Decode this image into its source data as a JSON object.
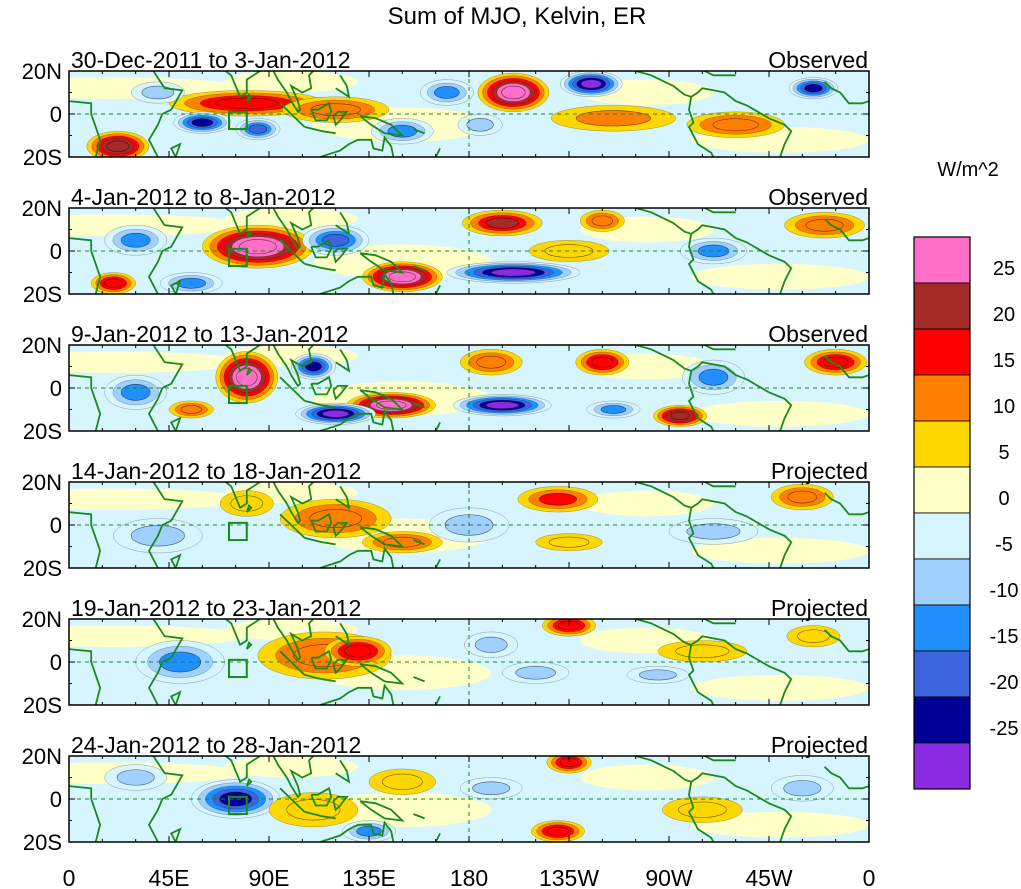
{
  "chart_data": {
    "type": "heatmap",
    "title": "Sum of MJO, Kelvin, ER",
    "colorbar": {
      "unit_label": "W/m^2",
      "tick_labels": [
        "25",
        "20",
        "15",
        "10",
        "5",
        "0",
        "-5",
        "-10",
        "-15",
        "-20",
        "-25"
      ],
      "colors": [
        "#ff6ec7",
        "#a52a2a",
        "#ff0000",
        "#ff7f00",
        "#ffd700",
        "#ffffc8",
        "#d7f5ff",
        "#a0d0ff",
        "#2090ff",
        "#3c64dc",
        "#000096",
        "#8a2be2"
      ],
      "ranges": [
        ">25",
        "20 to 25",
        "15 to 20",
        "10 to 15",
        "5 to 10",
        "0 to 5",
        "-5 to 0",
        "-10 to -5",
        "-15 to -10",
        "-20 to -15",
        "-25 to -20",
        "<-25"
      ]
    },
    "x_tick_labels": [
      "0",
      "45E",
      "90E",
      "135E",
      "180",
      "135W",
      "90W",
      "45W",
      "0"
    ],
    "x_ticks_deg": [
      0,
      45,
      90,
      135,
      180,
      225,
      270,
      315,
      360
    ],
    "y_tick_labels": [
      "20N",
      "0",
      "20S"
    ],
    "xlim": [
      0,
      360
    ],
    "ylim": [
      -20,
      20
    ],
    "panels": [
      {
        "period": "30-Dec-2011 to 3-Jan-2012",
        "status": "Observed",
        "blobs": [
          {
            "lon": 200,
            "lat": 10,
            "rlon": 16,
            "rlat": 9,
            "v": 28
          },
          {
            "lon": 235,
            "lat": 14,
            "rlon": 14,
            "rlat": 6,
            "v": -28
          },
          {
            "lon": 335,
            "lat": 12,
            "rlon": 11,
            "rlat": 5,
            "v": -25
          },
          {
            "lon": 80,
            "lat": 5,
            "rlon": 35,
            "rlat": 6,
            "v": 16
          },
          {
            "lon": 120,
            "lat": 2,
            "rlon": 24,
            "rlat": 6,
            "v": 14
          },
          {
            "lon": 22,
            "lat": -15,
            "rlon": 14,
            "rlat": 7,
            "v": 24
          },
          {
            "lon": 60,
            "lat": -4,
            "rlon": 13,
            "rlat": 5,
            "v": -23
          },
          {
            "lon": 85,
            "lat": -7,
            "rlon": 10,
            "rlat": 5,
            "v": -18
          },
          {
            "lon": 300,
            "lat": -5,
            "rlon": 22,
            "rlat": 6,
            "v": 12
          },
          {
            "lon": 245,
            "lat": -2,
            "rlon": 28,
            "rlat": 6,
            "v": 10
          },
          {
            "lon": 170,
            "lat": 10,
            "rlon": 12,
            "rlat": 6,
            "v": -14
          },
          {
            "lon": 150,
            "lat": -8,
            "rlon": 14,
            "rlat": 6,
            "v": -12
          },
          {
            "lon": 185,
            "lat": -5,
            "rlon": 10,
            "rlat": 5,
            "v": -10
          },
          {
            "lon": 40,
            "lat": 10,
            "rlon": 12,
            "rlat": 5,
            "v": -10
          }
        ]
      },
      {
        "period": "4-Jan-2012 to 8-Jan-2012",
        "status": "Observed",
        "blobs": [
          {
            "lon": 85,
            "lat": 2,
            "rlon": 25,
            "rlat": 10,
            "v": 28
          },
          {
            "lon": 150,
            "lat": -12,
            "rlon": 18,
            "rlat": 7,
            "v": 28
          },
          {
            "lon": 200,
            "lat": -10,
            "rlon": 30,
            "rlat": 5,
            "v": -28
          },
          {
            "lon": 195,
            "lat": 13,
            "rlon": 18,
            "rlat": 6,
            "v": 20
          },
          {
            "lon": 240,
            "lat": 14,
            "rlon": 10,
            "rlat": 5,
            "v": 12
          },
          {
            "lon": 340,
            "lat": 12,
            "rlon": 18,
            "rlat": 6,
            "v": 12
          },
          {
            "lon": 120,
            "lat": 5,
            "rlon": 15,
            "rlat": 7,
            "v": -16
          },
          {
            "lon": 30,
            "lat": 5,
            "rlon": 14,
            "rlat": 7,
            "v": -12
          },
          {
            "lon": 55,
            "lat": -15,
            "rlon": 14,
            "rlat": 5,
            "v": -15
          },
          {
            "lon": 290,
            "lat": 0,
            "rlon": 15,
            "rlat": 6,
            "v": -12
          },
          {
            "lon": 225,
            "lat": 0,
            "rlon": 18,
            "rlat": 5,
            "v": 6
          },
          {
            "lon": 20,
            "lat": -15,
            "rlon": 10,
            "rlat": 5,
            "v": 18
          }
        ]
      },
      {
        "period": "9-Jan-2012 to 13-Jan-2012",
        "status": "Observed",
        "blobs": [
          {
            "lon": 80,
            "lat": 5,
            "rlon": 14,
            "rlat": 12,
            "v": 28
          },
          {
            "lon": 145,
            "lat": -8,
            "rlon": 20,
            "rlat": 6,
            "v": 28
          },
          {
            "lon": 120,
            "lat": -12,
            "rlon": 18,
            "rlat": 5,
            "v": -28
          },
          {
            "lon": 195,
            "lat": -8,
            "rlon": 22,
            "rlat": 5,
            "v": -28
          },
          {
            "lon": 240,
            "lat": 12,
            "rlon": 12,
            "rlat": 6,
            "v": 16
          },
          {
            "lon": 190,
            "lat": 12,
            "rlon": 14,
            "rlat": 6,
            "v": 12
          },
          {
            "lon": 275,
            "lat": -13,
            "rlon": 12,
            "rlat": 5,
            "v": 24
          },
          {
            "lon": 345,
            "lat": 12,
            "rlon": 14,
            "rlat": 6,
            "v": 18
          },
          {
            "lon": 30,
            "lat": -2,
            "rlon": 14,
            "rlat": 8,
            "v": -12
          },
          {
            "lon": 290,
            "lat": 5,
            "rlon": 14,
            "rlat": 8,
            "v": -14
          },
          {
            "lon": 110,
            "lat": 10,
            "rlon": 10,
            "rlat": 6,
            "v": -22
          },
          {
            "lon": 245,
            "lat": -10,
            "rlon": 12,
            "rlat": 4,
            "v": -14
          },
          {
            "lon": 55,
            "lat": -10,
            "rlon": 10,
            "rlat": 4,
            "v": 12
          }
        ]
      },
      {
        "period": "14-Jan-2012 to 18-Jan-2012",
        "status": "Projected",
        "blobs": [
          {
            "lon": 120,
            "lat": 3,
            "rlon": 25,
            "rlat": 9,
            "v": 12
          },
          {
            "lon": 150,
            "lat": -8,
            "rlon": 18,
            "rlat": 5,
            "v": 14
          },
          {
            "lon": 220,
            "lat": 12,
            "rlon": 18,
            "rlat": 6,
            "v": 15
          },
          {
            "lon": 330,
            "lat": 13,
            "rlon": 14,
            "rlat": 6,
            "v": 14
          },
          {
            "lon": 80,
            "lat": 10,
            "rlon": 12,
            "rlat": 6,
            "v": 7
          },
          {
            "lon": 40,
            "lat": -5,
            "rlon": 20,
            "rlat": 8,
            "v": -10
          },
          {
            "lon": 180,
            "lat": 0,
            "rlon": 18,
            "rlat": 8,
            "v": -7
          },
          {
            "lon": 290,
            "lat": -3,
            "rlon": 20,
            "rlat": 6,
            "v": -10
          },
          {
            "lon": 225,
            "lat": -8,
            "rlon": 15,
            "rlat": 4,
            "v": 8
          }
        ]
      },
      {
        "period": "19-Jan-2012 to 23-Jan-2012",
        "status": "Projected",
        "blobs": [
          {
            "lon": 115,
            "lat": 3,
            "rlon": 30,
            "rlat": 11,
            "v": 14
          },
          {
            "lon": 130,
            "lat": 5,
            "rlon": 15,
            "rlat": 7,
            "v": 17
          },
          {
            "lon": 225,
            "lat": 17,
            "rlon": 12,
            "rlat": 5,
            "v": 18
          },
          {
            "lon": 50,
            "lat": 0,
            "rlon": 20,
            "rlat": 10,
            "v": -14
          },
          {
            "lon": 210,
            "lat": -5,
            "rlon": 15,
            "rlat": 5,
            "v": -10
          },
          {
            "lon": 265,
            "lat": -6,
            "rlon": 14,
            "rlat": 4,
            "v": -8
          },
          {
            "lon": 190,
            "lat": 8,
            "rlon": 12,
            "rlat": 6,
            "v": -8
          },
          {
            "lon": 335,
            "lat": 12,
            "rlon": 12,
            "rlat": 5,
            "v": 8
          },
          {
            "lon": 285,
            "lat": 5,
            "rlon": 20,
            "rlat": 5,
            "v": 6
          }
        ]
      },
      {
        "period": "24-Jan-2012 to 28-Jan-2012",
        "status": "Projected",
        "blobs": [
          {
            "lon": 75,
            "lat": 0,
            "rlon": 20,
            "rlat": 9,
            "v": -22
          },
          {
            "lon": 135,
            "lat": -15,
            "rlon": 12,
            "rlat": 5,
            "v": -14
          },
          {
            "lon": 220,
            "lat": -15,
            "rlon": 12,
            "rlat": 5,
            "v": 16
          },
          {
            "lon": 225,
            "lat": 17,
            "rlon": 10,
            "rlat": 5,
            "v": 16
          },
          {
            "lon": 110,
            "lat": -5,
            "rlon": 20,
            "rlat": 8,
            "v": 9
          },
          {
            "lon": 150,
            "lat": 8,
            "rlon": 15,
            "rlat": 6,
            "v": 6
          },
          {
            "lon": 190,
            "lat": 5,
            "rlon": 14,
            "rlat": 5,
            "v": -8
          },
          {
            "lon": 30,
            "lat": 10,
            "rlon": 14,
            "rlat": 6,
            "v": -8
          },
          {
            "lon": 285,
            "lat": -5,
            "rlon": 18,
            "rlat": 6,
            "v": 6
          },
          {
            "lon": 330,
            "lat": 5,
            "rlon": 14,
            "rlat": 6,
            "v": -7
          }
        ]
      }
    ],
    "region_box": {
      "lon_min": 72,
      "lon_max": 80,
      "lat_min": -7,
      "lat_max": 1
    },
    "equator_lat": 0,
    "dateline_lon": 180
  }
}
